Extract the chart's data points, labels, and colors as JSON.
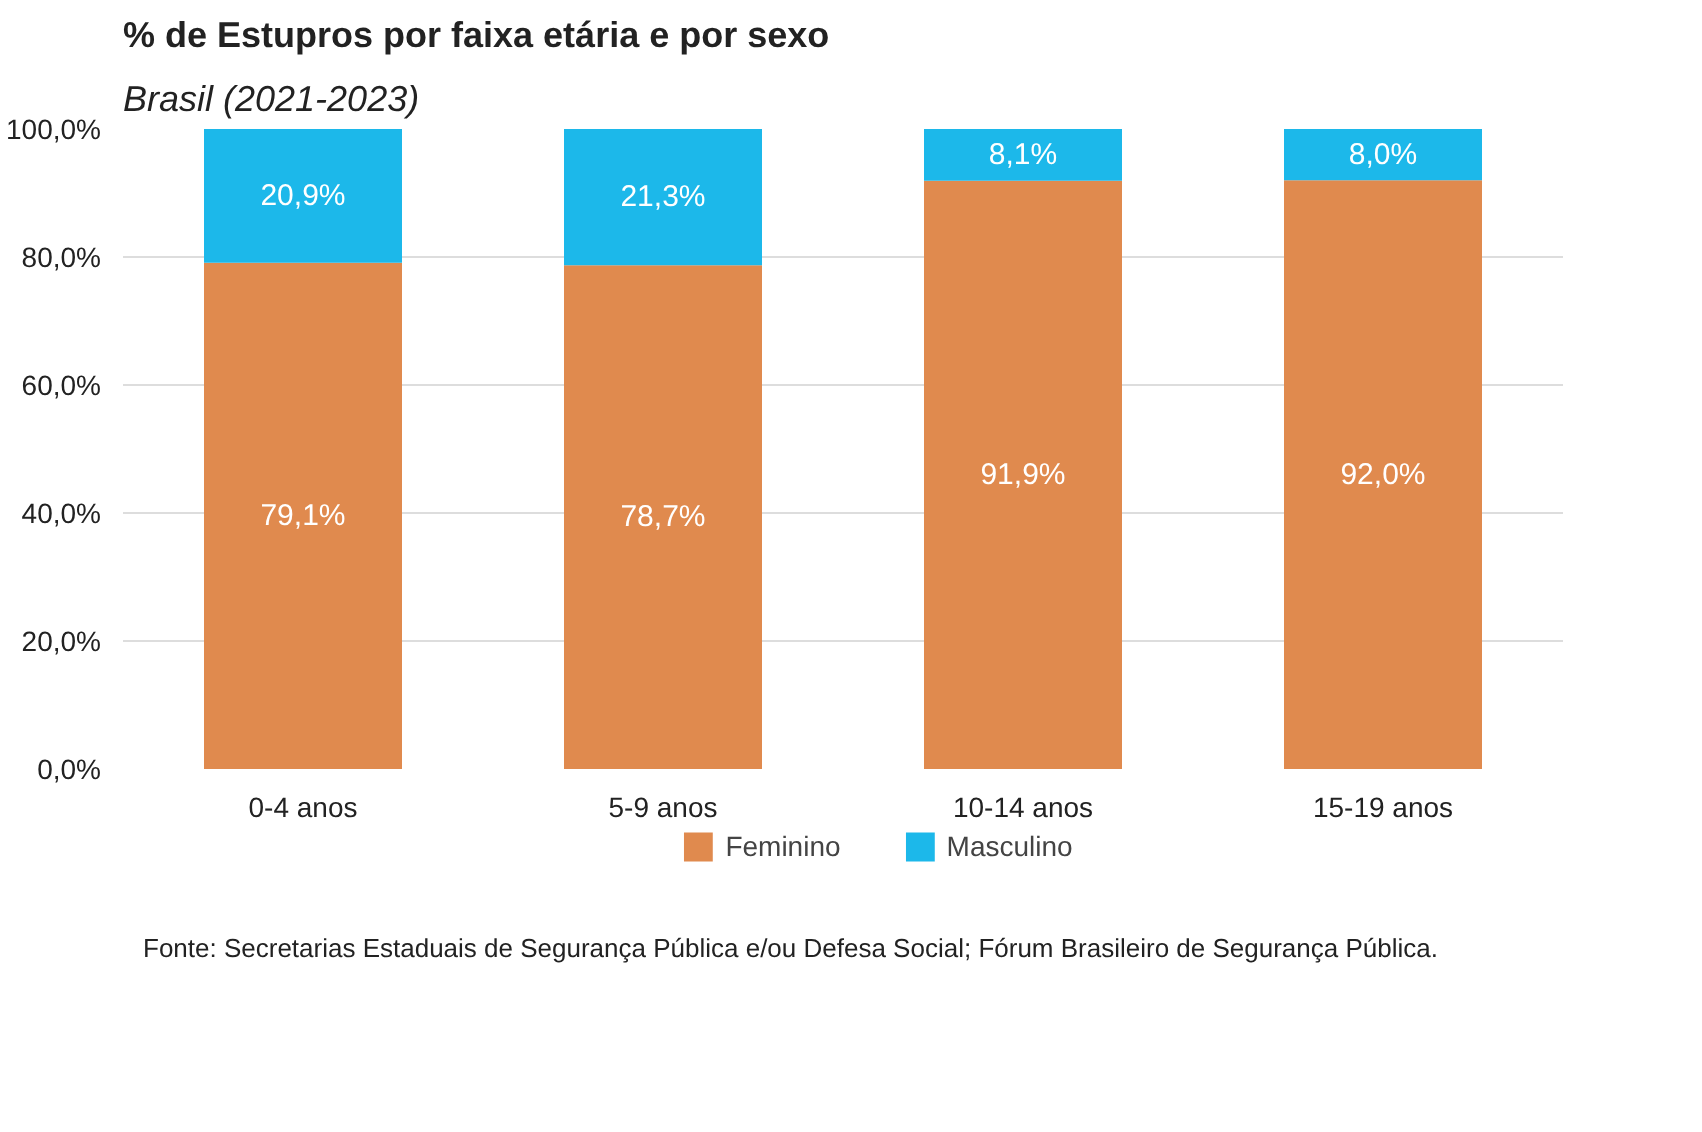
{
  "chart_data": {
    "type": "bar",
    "title": "% de Estupros por faixa etária e por sexo",
    "subtitle": "Brasil (2021-2023)",
    "categories": [
      "0-4 anos",
      "5-9 anos",
      "10-14 anos",
      "15-19 anos"
    ],
    "series": [
      {
        "name": "Feminino",
        "color": "#e08a4e",
        "values": [
          79.1,
          78.7,
          91.9,
          92.0
        ],
        "value_labels": [
          "79,1%",
          "78,7%",
          "91,9%",
          "92,0%"
        ]
      },
      {
        "name": "Masculino",
        "color": "#1cb8ea",
        "values": [
          20.9,
          21.3,
          8.1,
          8.0
        ],
        "value_labels": [
          "20,9%",
          "21,3%",
          "8,1%",
          "8,0%"
        ]
      }
    ],
    "stacked": true,
    "ylim": [
      0,
      100
    ],
    "yticks": [
      {
        "value": 0,
        "label": "0,0%"
      },
      {
        "value": 20,
        "label": "20,0%"
      },
      {
        "value": 40,
        "label": "40,0%"
      },
      {
        "value": 60,
        "label": "60,0%"
      },
      {
        "value": 80,
        "label": "80,0%"
      },
      {
        "value": 100,
        "label": "100,0%"
      }
    ],
    "grid": "y",
    "legend": "bottom",
    "annotations": [
      "Fonte: Secretarias Estaduais de Segurança Pública e/ou Defesa Social; Fórum Brasileiro de Segurança Pública."
    ]
  }
}
